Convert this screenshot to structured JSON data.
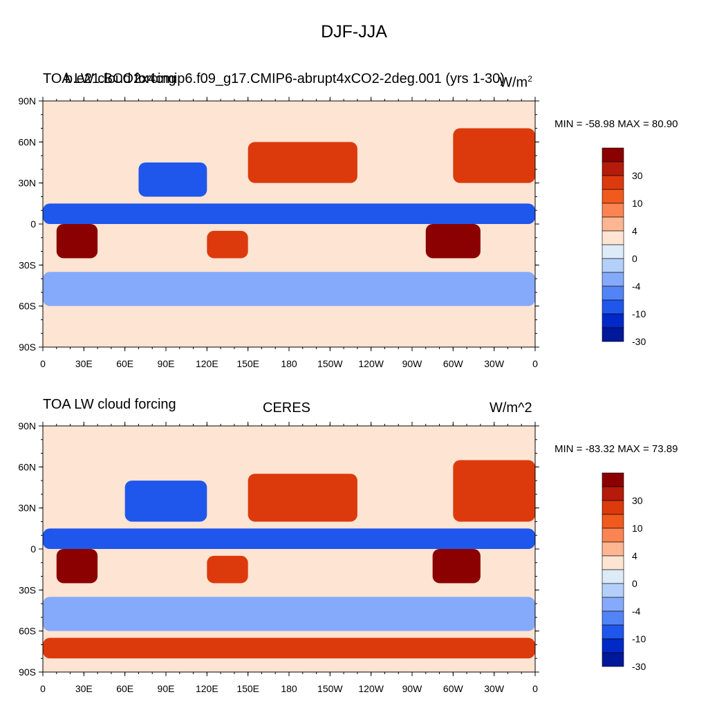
{
  "title": "DJF-JJA",
  "colorbar": {
    "colors": [
      "#8b0000",
      "#b51b0a",
      "#dc3a0c",
      "#f05a1c",
      "#fa8452",
      "#fdb592",
      "#fee4d2",
      "#ddebf8",
      "#b3cffa",
      "#86aafb",
      "#5384f6",
      "#1f57ec",
      "#0029c8",
      "#00189a"
    ],
    "labels": [
      "30",
      "10",
      "4",
      "0",
      "-4",
      "-10",
      "-30"
    ]
  },
  "panels": [
    {
      "left_title": "TOA LW cloud forcing",
      "center_title": "b.e21.BCO2x4cmip6.f09_g17.CMIP6-abrupt4xCO2-2deg.001 (yrs 1-30)",
      "units": "W/m",
      "units_sup": "2",
      "min_max": "MIN = -58.98 MAX =  80.90"
    },
    {
      "left_title": "TOA LW cloud forcing",
      "center_title": "CERES",
      "units": "W/m^2",
      "units_sup": "",
      "min_max": "MIN = -83.32 MAX =  73.89"
    }
  ],
  "axes": {
    "lat_labels": [
      "90N",
      "60N",
      "30N",
      "0",
      "30S",
      "60S",
      "90S"
    ],
    "lon_labels": [
      "0",
      "30E",
      "60E",
      "90E",
      "120E",
      "150E",
      "180",
      "150W",
      "120W",
      "90W",
      "60W",
      "30W",
      "0"
    ]
  },
  "chart_data": [
    {
      "type": "heatmap",
      "title": "b.e21.BCO2x4cmip6.f09_g17.CMIP6-abrupt4xCO2-2deg.001 (yrs 1-30)",
      "variable": "TOA LW cloud forcing",
      "units": "W/m2",
      "min": -58.98,
      "max": 80.9,
      "xlim": [
        0,
        360
      ],
      "ylim": [
        -90,
        90
      ],
      "contour_levels": [
        -30,
        -10,
        -4,
        0,
        4,
        10,
        30
      ],
      "regions": [
        {
          "lat": [
            -25,
            0
          ],
          "lon": [
            10,
            40
          ],
          "value": 35
        },
        {
          "lat": [
            -25,
            0
          ],
          "lon": [
            280,
            320
          ],
          "value": 40
        },
        {
          "lat": [
            -25,
            -5
          ],
          "lon": [
            120,
            150
          ],
          "value": 20
        },
        {
          "lat": [
            20,
            45
          ],
          "lon": [
            70,
            120
          ],
          "value": -25
        },
        {
          "lat": [
            0,
            15
          ],
          "lon": [
            0,
            360
          ],
          "value": -12
        },
        {
          "lat": [
            -60,
            -35
          ],
          "lon": [
            0,
            360
          ],
          "value": -8
        },
        {
          "lat": [
            30,
            60
          ],
          "lon": [
            150,
            230
          ],
          "value": 12
        },
        {
          "lat": [
            30,
            70
          ],
          "lon": [
            300,
            360
          ],
          "value": 15
        },
        {
          "lat": [
            -90,
            -65
          ],
          "lon": [
            0,
            360
          ],
          "value": 3
        }
      ]
    },
    {
      "type": "heatmap",
      "title": "CERES",
      "variable": "TOA LW cloud forcing",
      "units": "W/m^2",
      "min": -83.32,
      "max": 73.89,
      "xlim": [
        0,
        360
      ],
      "ylim": [
        -90,
        90
      ],
      "contour_levels": [
        -30,
        -10,
        -4,
        0,
        4,
        10,
        30
      ],
      "regions": [
        {
          "lat": [
            -25,
            0
          ],
          "lon": [
            10,
            40
          ],
          "value": 35
        },
        {
          "lat": [
            -25,
            0
          ],
          "lon": [
            285,
            320
          ],
          "value": 40
        },
        {
          "lat": [
            -25,
            -5
          ],
          "lon": [
            120,
            150
          ],
          "value": 25
        },
        {
          "lat": [
            20,
            50
          ],
          "lon": [
            60,
            120
          ],
          "value": -30
        },
        {
          "lat": [
            0,
            15
          ],
          "lon": [
            0,
            360
          ],
          "value": -20
        },
        {
          "lat": [
            -60,
            -35
          ],
          "lon": [
            0,
            360
          ],
          "value": -10
        },
        {
          "lat": [
            20,
            55
          ],
          "lon": [
            150,
            230
          ],
          "value": 15
        },
        {
          "lat": [
            20,
            65
          ],
          "lon": [
            300,
            360
          ],
          "value": 15
        },
        {
          "lat": [
            -80,
            -65
          ],
          "lon": [
            0,
            360
          ],
          "value": 12
        }
      ]
    }
  ]
}
